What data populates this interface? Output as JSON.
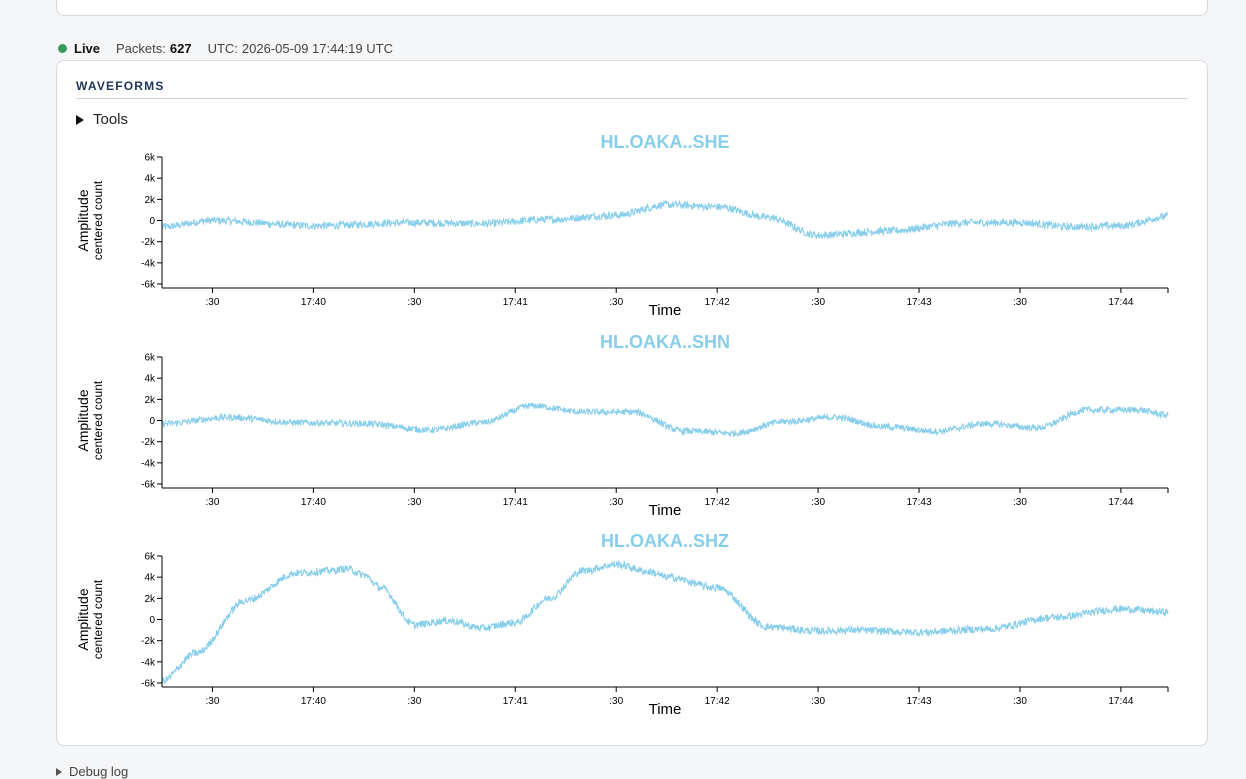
{
  "status": {
    "live_label": "Live",
    "packets_label": "Packets:",
    "packets_value": "627",
    "utc_label": "UTC:",
    "utc_value": "2026-05-09 17:44:19 UTC",
    "live_color": "#3a9a5b"
  },
  "card": {
    "title": "WAVEFORMS"
  },
  "tools": {
    "label": "Tools"
  },
  "debug": {
    "label": "Debug log"
  },
  "colors": {
    "trace": "#87ceeb",
    "title": "#87ceeb",
    "axis": "#000000"
  },
  "chart_data": [
    {
      "type": "line",
      "title": "HL.OAKA..SHE",
      "xlabel": "Time",
      "ylabel": "Amplitude",
      "ylabel_sub": "centered count",
      "x_tick_labels": [
        ":30",
        "17:40",
        ":30",
        "17:41",
        ":30",
        "17:42",
        ":30",
        "17:43",
        ":30",
        "17:44"
      ],
      "x_range_seconds_from_1739": [
        15,
        314
      ],
      "y_ticks": [
        "6k",
        "4k",
        "2k",
        "0",
        "-2k",
        "-4k",
        "-6k"
      ],
      "ylim": [
        -6000,
        6000
      ],
      "series": [
        {
          "noise": 350,
          "x": [
            15,
            30,
            60,
            90,
            110,
            130,
            150,
            165,
            180,
            195,
            210,
            230,
            255,
            270,
            285,
            300,
            314
          ],
          "y": [
            -600,
            0,
            -500,
            -200,
            -300,
            100,
            500,
            1500,
            1300,
            300,
            -1400,
            -1000,
            -200,
            -200,
            -600,
            -500,
            400
          ]
        }
      ]
    },
    {
      "type": "line",
      "title": "HL.OAKA..SHN",
      "xlabel": "Time",
      "ylabel": "Amplitude",
      "ylabel_sub": "centered count",
      "x_tick_labels": [
        ":30",
        "17:40",
        ":30",
        "17:41",
        ":30",
        "17:42",
        ":30",
        "17:43",
        ":30",
        "17:44"
      ],
      "x_range_seconds_from_1739": [
        15,
        314
      ],
      "y_ticks": [
        "6k",
        "4k",
        "2k",
        "0",
        "-2k",
        "-4k",
        "-6k"
      ],
      "ylim": [
        -6000,
        6000
      ],
      "series": [
        {
          "noise": 300,
          "x": [
            15,
            35,
            55,
            75,
            95,
            110,
            125,
            140,
            155,
            170,
            185,
            200,
            215,
            230,
            245,
            260,
            275,
            290,
            305,
            314
          ],
          "y": [
            -300,
            300,
            -200,
            -300,
            -900,
            -200,
            1400,
            800,
            800,
            -1000,
            -1200,
            -100,
            300,
            -600,
            -1000,
            -300,
            -700,
            1000,
            1000,
            500
          ]
        }
      ]
    },
    {
      "type": "line",
      "title": "HL.OAKA..SHZ",
      "xlabel": "Time",
      "ylabel": "Amplitude",
      "ylabel_sub": "centered count",
      "x_tick_labels": [
        ":30",
        "17:40",
        ":30",
        "17:41",
        ":30",
        "17:42",
        ":30",
        "17:43",
        ":30",
        "17:44"
      ],
      "x_range_seconds_from_1739": [
        15,
        314
      ],
      "y_ticks": [
        "6k",
        "4k",
        "2k",
        "0",
        "-2k",
        "-4k",
        "-6k"
      ],
      "ylim": [
        -6000,
        6000
      ],
      "series": [
        {
          "noise": 350,
          "x": [
            15,
            25,
            40,
            55,
            65,
            70,
            75,
            80,
            90,
            100,
            110,
            120,
            130,
            140,
            150,
            160,
            165,
            180,
            195,
            210,
            220,
            240,
            260,
            280,
            300,
            314
          ],
          "y": [
            -5800,
            -3200,
            1800,
            4400,
            4600,
            4800,
            4200,
            3000,
            -500,
            -100,
            -800,
            -300,
            2000,
            4600,
            5200,
            4500,
            4000,
            3000,
            -700,
            -1100,
            -1000,
            -1200,
            -900,
            200,
            1000,
            700
          ]
        }
      ]
    }
  ]
}
